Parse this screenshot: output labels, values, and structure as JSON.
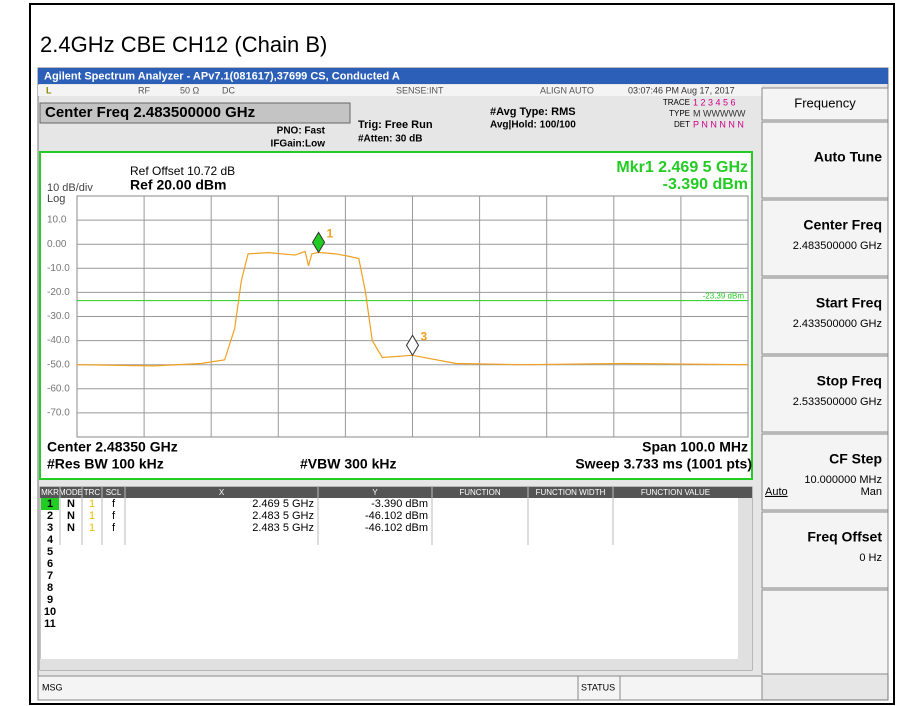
{
  "page_title": "2.4GHz CBE CH12 (Chain B)",
  "window_title": "Agilent Spectrum Analyzer - APv7.1(081617),37699 CS, Conducted A",
  "status_row": {
    "mode": "L",
    "rf": "RF",
    "impedance": "50 Ω",
    "coupling": "DC",
    "sense": "SENSE:INT",
    "align": "ALIGN AUTO",
    "datetime": "03:07:46 PM Aug 17, 2017"
  },
  "settings": {
    "center_freq": "Center Freq 2.483500000 GHz",
    "pno": "PNO: Fast",
    "ifgain": "IFGain:Low",
    "trig": "Trig: Free Run",
    "atten": "#Atten: 30 dB",
    "avg_type": "#Avg Type: RMS",
    "avg_hold": "Avg|Hold: 100/100",
    "trace_label": "TRACE",
    "trace_values": "1 2 3 4 5 6",
    "type_label": "TYPE",
    "type_values": "M WWWWW",
    "det_label": "DET",
    "det_values": "P N N N N N"
  },
  "plot": {
    "ref_offset": "Ref Offset 10.72 dB",
    "scale": "10 dB/div",
    "log": "Log",
    "ref_level": "Ref 20.00 dBm",
    "marker_freq": "Mkr1 2.469 5 GHz",
    "marker_level": "-3.390 dBm",
    "xlim": [
      2433.5,
      2533.5
    ],
    "ylim": [
      -80,
      20
    ],
    "yticks": [
      {
        "value": 10,
        "label": "10.0"
      },
      {
        "value": 0,
        "label": "0.00"
      },
      {
        "value": -10,
        "label": "-10.0"
      },
      {
        "value": -20,
        "label": "-20.0"
      },
      {
        "value": -30,
        "label": "-30.0"
      },
      {
        "value": -40,
        "label": "-40.0"
      },
      {
        "value": -50,
        "label": "-50.0"
      },
      {
        "value": -60,
        "label": "-60.0"
      },
      {
        "value": -70,
        "label": "-70.0"
      }
    ],
    "display_line": {
      "value": -23.39,
      "label": "-23.39 dBm"
    },
    "trace": {
      "color": "#f0a020",
      "x": [
        2433.5,
        2445,
        2452,
        2455.5,
        2457,
        2458,
        2459,
        2462,
        2466,
        2467.5,
        2468,
        2468.5,
        2469.5,
        2472,
        2474,
        2475.5,
        2476.5,
        2477.5,
        2479,
        2483.5,
        2490,
        2500,
        2515,
        2533.5
      ],
      "y": [
        -50,
        -50.5,
        -49.5,
        -48,
        -35,
        -15,
        -4,
        -3.5,
        -4.5,
        -3,
        -9,
        -4,
        -3.4,
        -4,
        -5,
        -6,
        -20,
        -40,
        -47,
        -46.1,
        -49.5,
        -50,
        -49.5,
        -50
      ]
    },
    "markers": [
      {
        "label": "1",
        "x": 2469.5,
        "y": -3.39,
        "color": "#22cc22"
      },
      {
        "label": "3",
        "x": 2483.5,
        "y": -46.102,
        "color": "#ffffff"
      }
    ],
    "center": "Center 2.48350 GHz",
    "span": "Span 100.0 MHz",
    "rbw": "#Res BW 100 kHz",
    "vbw": "#VBW 300 kHz",
    "sweep": "Sweep  3.733 ms (1001 pts)"
  },
  "table": {
    "headers": [
      "MKR",
      "MODE",
      "TRC",
      "SCL",
      "X",
      "Y",
      "FUNCTION",
      "FUNCTION WIDTH",
      "FUNCTION VALUE"
    ],
    "rows": [
      [
        "1",
        "N",
        "1",
        "f",
        "2.469 5 GHz",
        "-3.390 dBm"
      ],
      [
        "2",
        "N",
        "1",
        "f",
        "2.483 5 GHz",
        "-46.102 dBm"
      ],
      [
        "3",
        "N",
        "1",
        "f",
        "2.483 5 GHz",
        "-46.102 dBm"
      ],
      [
        "4"
      ],
      [
        "5"
      ],
      [
        "6"
      ],
      [
        "7"
      ],
      [
        "8"
      ],
      [
        "9"
      ],
      [
        "10"
      ],
      [
        "11"
      ]
    ]
  },
  "softkeys": {
    "menu": "Frequency",
    "keys": [
      {
        "label": "Auto Tune"
      },
      {
        "label": "Center Freq",
        "value": "2.483500000 GHz"
      },
      {
        "label": "Start Freq",
        "value": "2.433500000 GHz"
      },
      {
        "label": "Stop Freq",
        "value": "2.533500000 GHz"
      },
      {
        "label": "CF Step",
        "value": "10.000000 MHz",
        "options": [
          "Auto",
          "Man"
        ]
      },
      {
        "label": "Freq Offset",
        "value": "0 Hz"
      }
    ]
  },
  "footer": {
    "msg": "MSG",
    "status": "STATUS"
  }
}
